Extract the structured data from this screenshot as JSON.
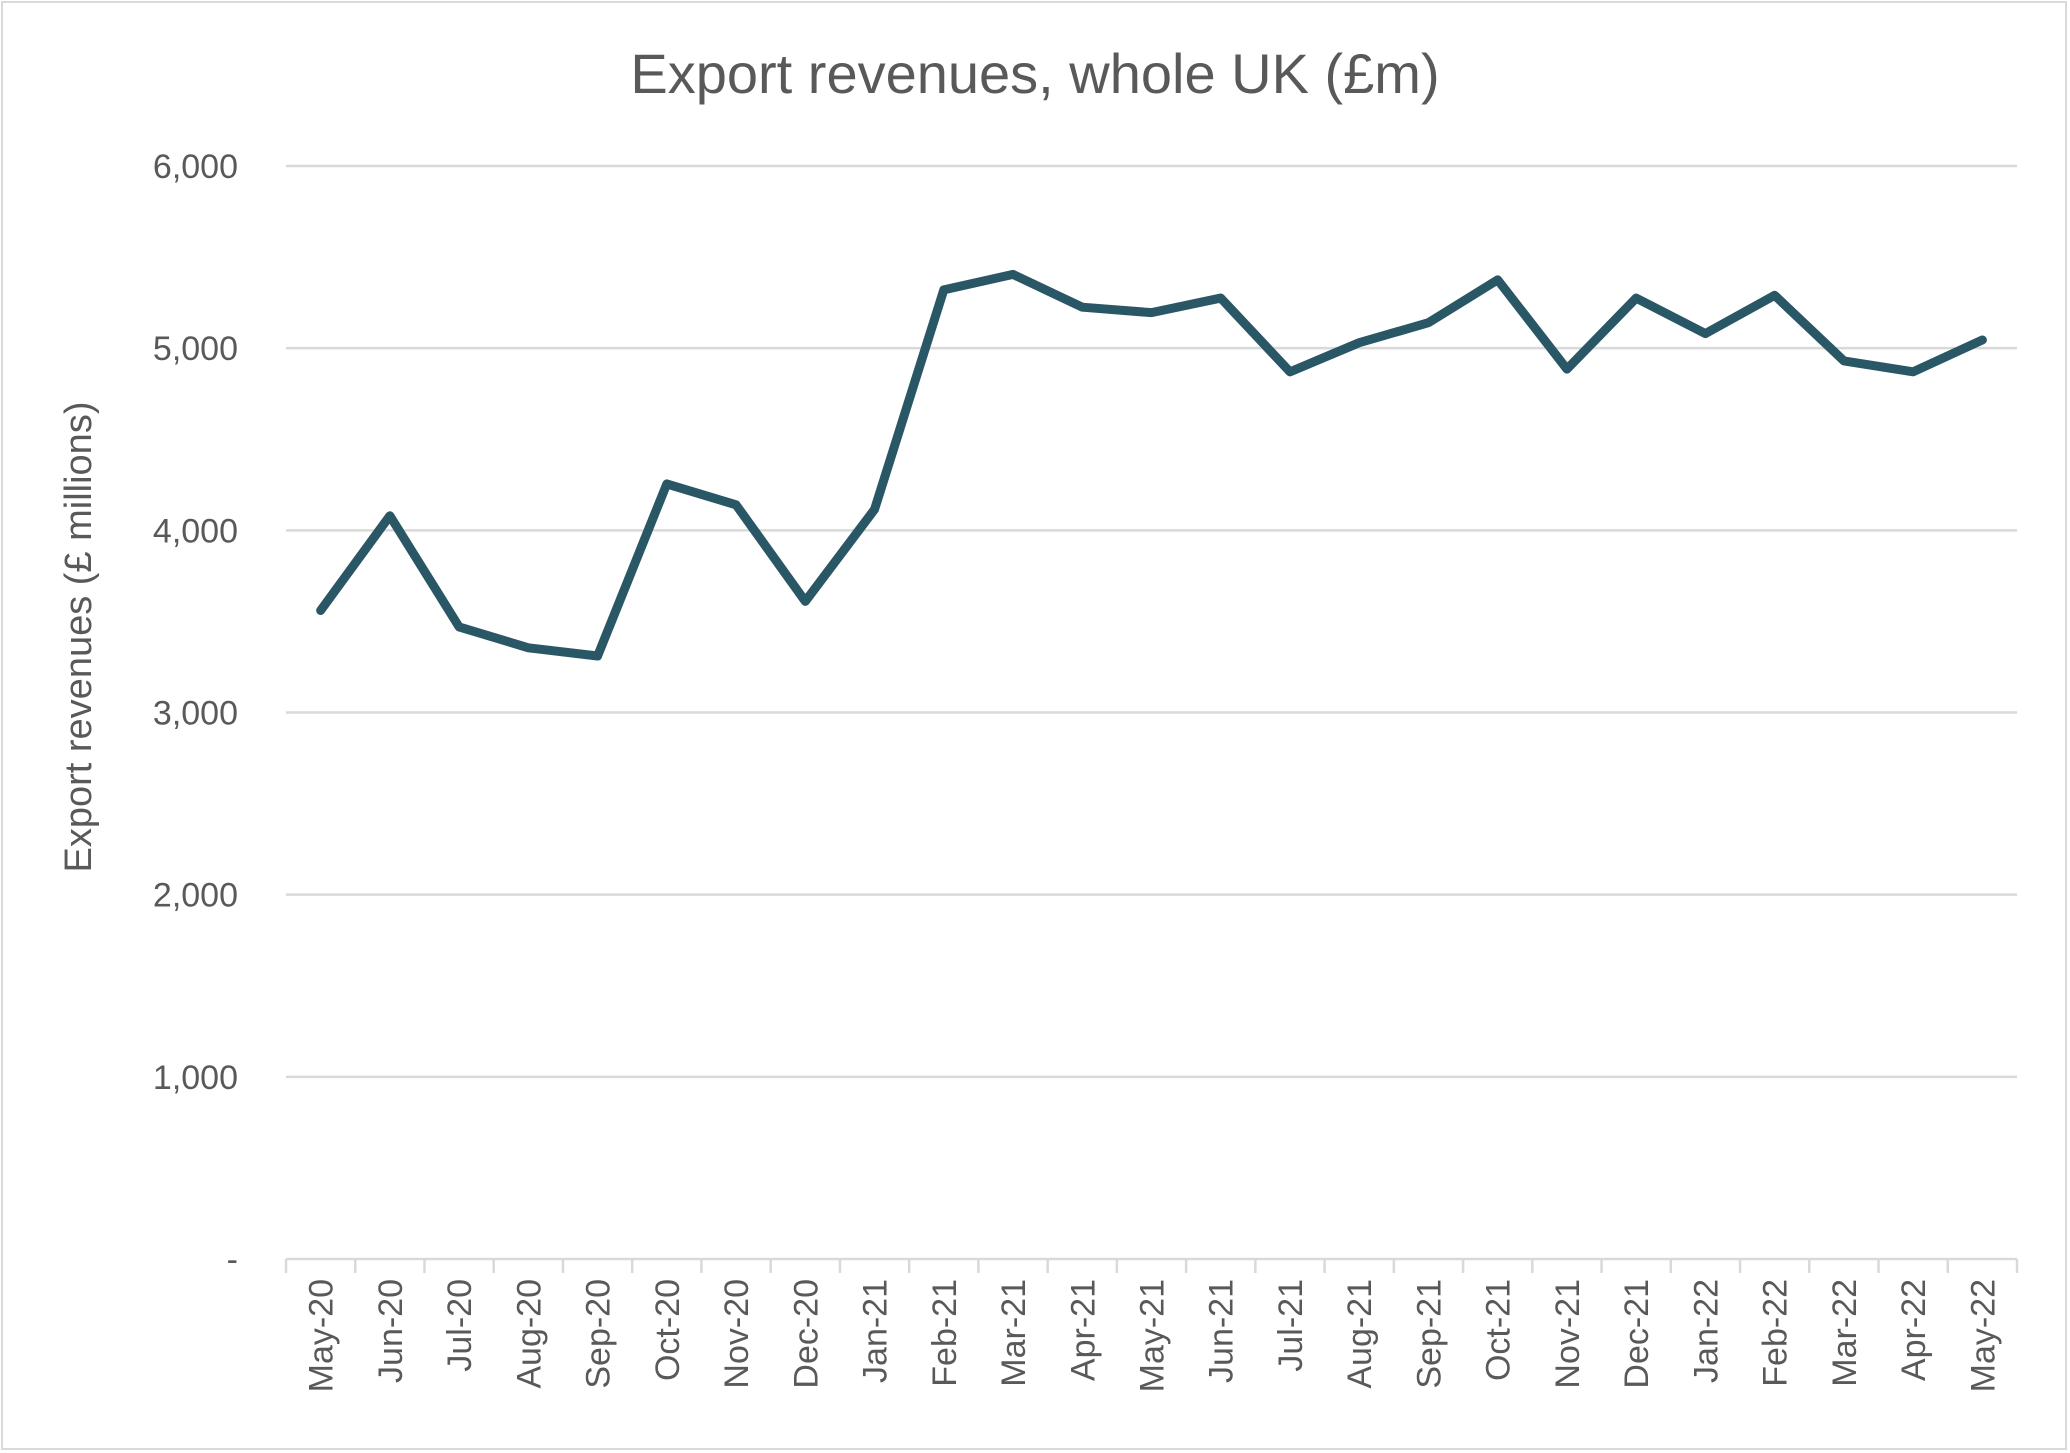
{
  "chart_data": {
    "type": "line",
    "title": "Export revenues, whole UK (£m)",
    "xlabel": "",
    "ylabel": "Export revenues (£ millions)",
    "ylim": [
      0,
      6000
    ],
    "yticks": [
      0,
      1000,
      2000,
      3000,
      4000,
      5000,
      6000
    ],
    "ytick_labels": [
      "-",
      "1,000",
      "2,000",
      "3,000",
      "4,000",
      "5,000",
      "6,000"
    ],
    "grid": true,
    "legend": "none",
    "line_color": "#2a5766",
    "categories": [
      "May-20",
      "Jun-20",
      "Jul-20",
      "Aug-20",
      "Sep-20",
      "Oct-20",
      "Nov-20",
      "Dec-20",
      "Jan-21",
      "Feb-21",
      "Mar-21",
      "Apr-21",
      "May-21",
      "Jun-21",
      "Jul-21",
      "Aug-21",
      "Sep-21",
      "Oct-21",
      "Nov-21",
      "Dec-21",
      "Jan-22",
      "Feb-22",
      "Mar-22",
      "Apr-22",
      "May-22"
    ],
    "series": [
      {
        "values": [
          3560,
          4080,
          3470,
          3355,
          3310,
          4255,
          4140,
          3610,
          4115,
          5320,
          5405,
          5225,
          5195,
          5275,
          4870,
          5030,
          5140,
          5375,
          4885,
          5275,
          5080,
          5290,
          4930,
          4870,
          5045
        ]
      }
    ]
  }
}
